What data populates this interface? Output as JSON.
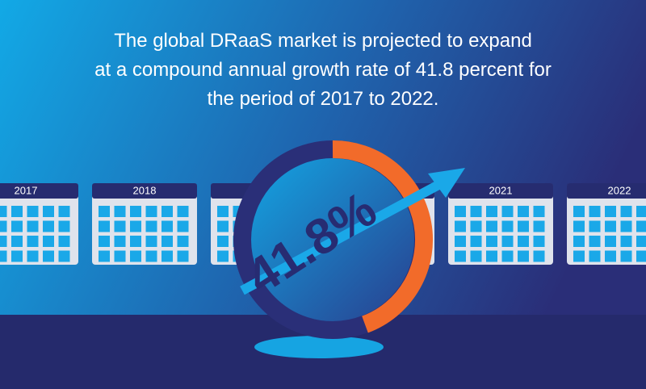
{
  "headline": [
    "The global DRaaS market is projected to expand",
    "at a compound annual growth rate of 41.8 percent for",
    "the period of 2017 to 2022."
  ],
  "calendars": [
    "2017",
    "2018",
    "2021",
    "2022"
  ],
  "growth_label": "41.8%"
}
